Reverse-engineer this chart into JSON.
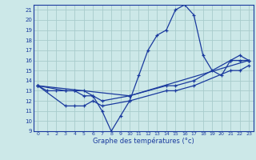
{
  "title": "",
  "xlabel": "Graphe des températures (°c)",
  "ylabel": "",
  "xlim": [
    -0.5,
    23.5
  ],
  "ylim": [
    9,
    21.5
  ],
  "yticks": [
    9,
    10,
    11,
    12,
    13,
    14,
    15,
    16,
    17,
    18,
    19,
    20,
    21
  ],
  "xticks": [
    0,
    1,
    2,
    3,
    4,
    5,
    6,
    7,
    8,
    9,
    10,
    11,
    12,
    13,
    14,
    15,
    16,
    17,
    18,
    19,
    20,
    21,
    22,
    23
  ],
  "bg_color": "#cce8e8",
  "line_color": "#1a3a9e",
  "grid_color": "#a8cccc",
  "series": [
    {
      "x": [
        0,
        1,
        2,
        3,
        4,
        5,
        6,
        7,
        8,
        9,
        10,
        11,
        12,
        13,
        14,
        15,
        16,
        17,
        18,
        19,
        20,
        21,
        22,
        23
      ],
      "y": [
        13.5,
        13,
        13,
        13,
        13,
        12.5,
        12.5,
        11,
        9,
        10.5,
        12,
        14.5,
        17,
        18.5,
        19,
        21,
        21.5,
        20.5,
        16.5,
        15,
        14.5,
        16,
        16.5,
        16
      ]
    },
    {
      "x": [
        0,
        3,
        4,
        5,
        6,
        7,
        10,
        14,
        15,
        17,
        21,
        22,
        23
      ],
      "y": [
        13.5,
        11.5,
        11.5,
        11.5,
        12,
        11.5,
        12,
        13,
        13,
        13.5,
        15,
        15,
        15.5
      ]
    },
    {
      "x": [
        0,
        3,
        4,
        5,
        6,
        7,
        10,
        14,
        15,
        17,
        21,
        22,
        23
      ],
      "y": [
        13.5,
        13,
        13,
        13,
        12.5,
        12,
        12.5,
        13.5,
        13.5,
        14,
        16,
        16,
        16
      ]
    },
    {
      "x": [
        0,
        10,
        23
      ],
      "y": [
        13.5,
        12.5,
        16
      ]
    }
  ]
}
